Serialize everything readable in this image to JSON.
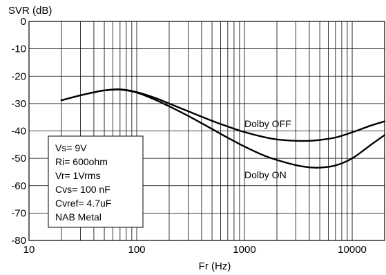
{
  "chart_data": {
    "type": "line",
    "ylabel": "SVR (dB)",
    "xlabel": "Fr (Hz)",
    "xscale": "log",
    "xlim": [
      10,
      20000
    ],
    "ylim": [
      -80,
      0
    ],
    "grid": true,
    "x_tick_labels": [
      "10",
      "100",
      "1000",
      "10000"
    ],
    "y_tick_labels": [
      "0",
      "-10",
      "-20",
      "-30",
      "-40",
      "-50",
      "-60",
      "-70",
      "-80"
    ],
    "series": [
      {
        "name": "Dolby OFF",
        "x": [
          20,
          30,
          40,
          50,
          70,
          100,
          150,
          200,
          300,
          500,
          700,
          1000,
          1500,
          2000,
          3000,
          4000,
          5000,
          7000,
          10000,
          15000,
          20000
        ],
        "y": [
          -28.8,
          -27.0,
          -25.9,
          -25.2,
          -24.8,
          -25.8,
          -28.0,
          -30.0,
          -32.8,
          -36.3,
          -38.4,
          -40.4,
          -42.2,
          -43.1,
          -43.6,
          -43.6,
          -43.3,
          -42.4,
          -40.5,
          -38.0,
          -36.5
        ]
      },
      {
        "name": "Dolby ON",
        "x": [
          20,
          30,
          40,
          50,
          70,
          100,
          150,
          200,
          300,
          500,
          700,
          1000,
          1500,
          2000,
          3000,
          4000,
          5000,
          7000,
          10000,
          15000,
          20000
        ],
        "y": [
          -28.8,
          -27.0,
          -25.9,
          -25.2,
          -24.9,
          -26.0,
          -28.7,
          -31.0,
          -34.5,
          -39.3,
          -42.5,
          -45.7,
          -48.9,
          -50.6,
          -52.5,
          -53.3,
          -53.4,
          -52.6,
          -50.0,
          -45.0,
          -41.5
        ]
      }
    ],
    "annotations": [
      "Vs= 9V",
      "Ri= 600ohm",
      "Vr= 1Vrms",
      "Cvs= 100 nF",
      "Cvref= 4.7uF",
      "NAB Metal"
    ]
  }
}
